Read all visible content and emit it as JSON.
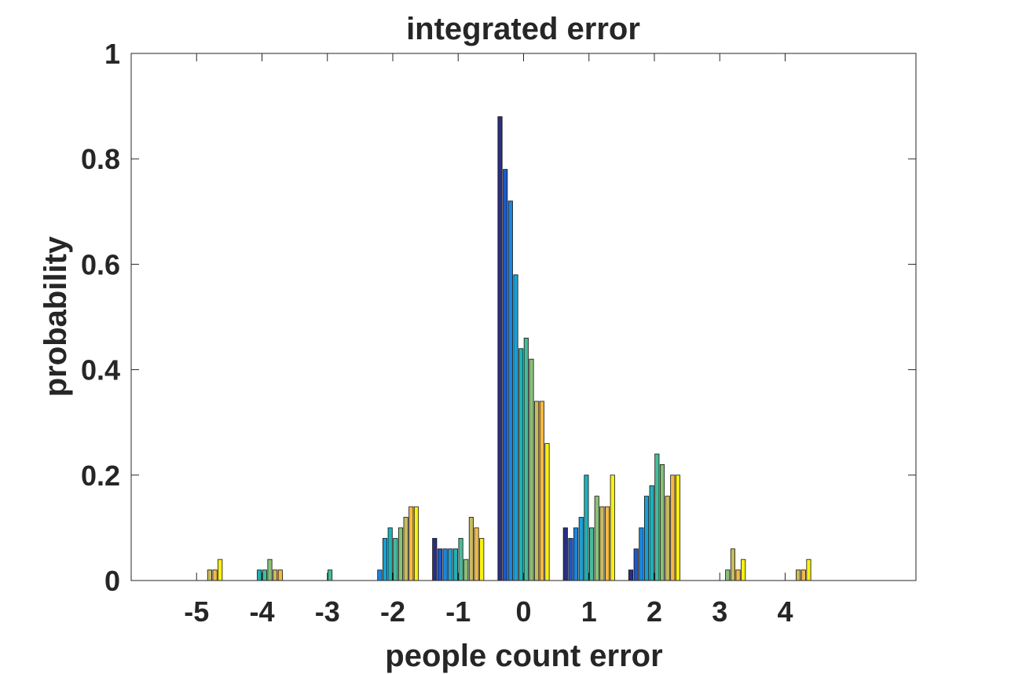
{
  "chart_data": {
    "type": "bar",
    "title": "integrated error",
    "xlabel": "people count error",
    "ylabel": "probability",
    "xlim": [
      -6,
      6
    ],
    "ylim": [
      0,
      1
    ],
    "xticks": [
      "-5",
      "-4",
      "-3",
      "-2",
      "-1",
      "0",
      "1",
      "2",
      "3",
      "4"
    ],
    "yticks": [
      "0",
      "0.2",
      "0.4",
      "0.6",
      "0.8",
      "1"
    ],
    "categories": [
      -5,
      -4,
      -3,
      -2,
      -1,
      0,
      1,
      2,
      3,
      4
    ],
    "grid": false,
    "series": [
      {
        "color": "#2b2f7f",
        "values": [
          0,
          0,
          0,
          0,
          0.08,
          0.88,
          0.1,
          0.02,
          0,
          0
        ]
      },
      {
        "color": "#1f57c8",
        "values": [
          0,
          0,
          0,
          0,
          0.06,
          0.78,
          0.08,
          0.06,
          0,
          0
        ]
      },
      {
        "color": "#1a86dc",
        "values": [
          0,
          0,
          0,
          0.02,
          0.06,
          0.72,
          0.1,
          0.1,
          0,
          0
        ]
      },
      {
        "color": "#1aa0d2",
        "values": [
          0,
          0,
          0,
          0.08,
          0.06,
          0.58,
          0.12,
          0.16,
          0,
          0
        ]
      },
      {
        "color": "#1fb1b6",
        "values": [
          0,
          0.02,
          0,
          0.1,
          0.06,
          0.44,
          0.2,
          0.18,
          0,
          0
        ]
      },
      {
        "color": "#48bb9a",
        "values": [
          0,
          0.02,
          0.02,
          0.08,
          0.08,
          0.46,
          0.1,
          0.24,
          0,
          0
        ]
      },
      {
        "color": "#8abf78",
        "values": [
          0,
          0.04,
          0,
          0.1,
          0.04,
          0.42,
          0.16,
          0.22,
          0.02,
          0
        ]
      },
      {
        "color": "#c8bb60",
        "values": [
          0.02,
          0.02,
          0,
          0.12,
          0.12,
          0.34,
          0.14,
          0.16,
          0.06,
          0.02
        ]
      },
      {
        "color": "#f4b945",
        "values": [
          0.02,
          0.02,
          0,
          0.14,
          0.1,
          0.34,
          0.14,
          0.2,
          0.02,
          0.02
        ]
      },
      {
        "color": "#f8f014",
        "values": [
          0.04,
          0,
          0,
          0.14,
          0.08,
          0.26,
          0.2,
          0.2,
          0.04,
          0.04
        ]
      }
    ]
  }
}
